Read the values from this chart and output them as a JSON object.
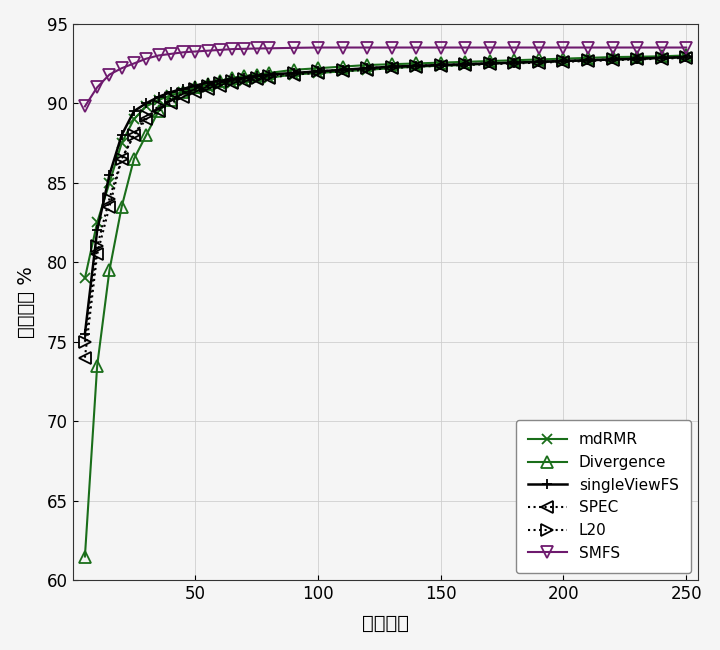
{
  "x_ticks": [
    50,
    100,
    150,
    200,
    250
  ],
  "xlim": [
    0,
    255
  ],
  "ylim": [
    60,
    95
  ],
  "y_ticks": [
    60,
    65,
    70,
    75,
    80,
    85,
    90,
    95
  ],
  "xlabel": "特征数量",
  "ylabel": "总体精度 %",
  "background_color": "#f5f5f5",
  "grid_color": "#cccccc",
  "series": {
    "mdRMR": {
      "x": [
        5,
        10,
        15,
        20,
        25,
        30,
        35,
        40,
        45,
        50,
        55,
        60,
        65,
        70,
        75,
        80,
        90,
        100,
        110,
        120,
        130,
        140,
        150,
        160,
        170,
        180,
        190,
        200,
        210,
        220,
        230,
        240,
        250
      ],
      "y": [
        79.0,
        82.5,
        85.0,
        87.5,
        89.0,
        89.8,
        90.2,
        90.5,
        90.7,
        90.9,
        91.0,
        91.2,
        91.3,
        91.4,
        91.5,
        91.6,
        91.8,
        91.9,
        92.0,
        92.1,
        92.2,
        92.3,
        92.35,
        92.4,
        92.5,
        92.55,
        92.6,
        92.65,
        92.7,
        92.75,
        92.8,
        92.85,
        92.9
      ],
      "color": "#1a6e1a",
      "linestyle": "-",
      "marker": "x",
      "markersize": 7,
      "linewidth": 1.5,
      "markerfacecolor": "none"
    },
    "Divergence": {
      "x": [
        5,
        10,
        15,
        20,
        25,
        30,
        35,
        40,
        45,
        50,
        55,
        60,
        65,
        70,
        75,
        80,
        90,
        100,
        110,
        120,
        130,
        140,
        150,
        160,
        170,
        180,
        190,
        200,
        210,
        220,
        230,
        240,
        250
      ],
      "y": [
        61.5,
        73.5,
        79.5,
        83.5,
        86.5,
        88.0,
        89.5,
        90.2,
        90.7,
        91.0,
        91.2,
        91.4,
        91.6,
        91.7,
        91.8,
        91.9,
        92.1,
        92.2,
        92.3,
        92.4,
        92.45,
        92.5,
        92.55,
        92.6,
        92.65,
        92.7,
        92.75,
        92.8,
        92.85,
        92.9,
        92.92,
        92.95,
        93.0
      ],
      "color": "#1a6e1a",
      "linestyle": "-",
      "marker": "^",
      "markersize": 8,
      "linewidth": 1.5,
      "markerfacecolor": "none"
    },
    "singleViewFS": {
      "x": [
        5,
        10,
        15,
        20,
        25,
        30,
        35,
        40,
        45,
        50,
        55,
        60,
        65,
        70,
        75,
        80,
        90,
        100,
        110,
        120,
        130,
        140,
        150,
        160,
        170,
        180,
        190,
        200,
        210,
        220,
        230,
        240,
        250
      ],
      "y": [
        75.5,
        82.0,
        85.5,
        88.0,
        89.5,
        90.0,
        90.4,
        90.7,
        90.9,
        91.1,
        91.3,
        91.4,
        91.5,
        91.6,
        91.7,
        91.8,
        91.9,
        92.0,
        92.1,
        92.2,
        92.3,
        92.35,
        92.4,
        92.45,
        92.5,
        92.55,
        92.6,
        92.65,
        92.7,
        92.75,
        92.8,
        92.85,
        92.9
      ],
      "color": "#000000",
      "linestyle": "-",
      "marker": "+",
      "markersize": 7,
      "linewidth": 1.8,
      "markerfacecolor": "#000000"
    },
    "SPEC": {
      "x": [
        5,
        10,
        15,
        20,
        25,
        30,
        35,
        40,
        45,
        50,
        55,
        60,
        65,
        70,
        75,
        80,
        90,
        100,
        110,
        120,
        130,
        140,
        150,
        160,
        170,
        180,
        190,
        200,
        210,
        220,
        230,
        240,
        250
      ],
      "y": [
        74.0,
        80.5,
        83.5,
        86.5,
        88.0,
        89.0,
        89.5,
        90.0,
        90.4,
        90.7,
        90.9,
        91.1,
        91.3,
        91.4,
        91.5,
        91.6,
        91.8,
        91.9,
        92.0,
        92.1,
        92.2,
        92.3,
        92.35,
        92.4,
        92.45,
        92.5,
        92.55,
        92.6,
        92.65,
        92.7,
        92.75,
        92.8,
        92.85
      ],
      "color": "#000000",
      "linestyle": ":",
      "marker": "<",
      "markersize": 8,
      "linewidth": 1.5,
      "markerfacecolor": "none"
    },
    "L20": {
      "x": [
        5,
        10,
        15,
        20,
        25,
        30,
        35,
        40,
        45,
        50,
        55,
        60,
        65,
        70,
        75,
        80,
        90,
        100,
        110,
        120,
        130,
        140,
        150,
        160,
        170,
        180,
        190,
        200,
        210,
        220,
        230,
        240,
        250
      ],
      "y": [
        75.0,
        81.0,
        84.0,
        86.5,
        88.0,
        89.2,
        89.8,
        90.3,
        90.6,
        90.9,
        91.1,
        91.3,
        91.4,
        91.5,
        91.6,
        91.7,
        91.9,
        92.0,
        92.1,
        92.2,
        92.3,
        92.35,
        92.4,
        92.45,
        92.5,
        92.55,
        92.6,
        92.65,
        92.7,
        92.75,
        92.8,
        92.85,
        92.9
      ],
      "color": "#000000",
      "linestyle": ":",
      "marker": ">",
      "markersize": 8,
      "linewidth": 1.5,
      "markerfacecolor": "none"
    },
    "SMFS": {
      "x": [
        5,
        10,
        15,
        20,
        25,
        30,
        35,
        40,
        45,
        50,
        55,
        60,
        65,
        70,
        75,
        80,
        90,
        100,
        110,
        120,
        130,
        140,
        150,
        160,
        170,
        180,
        190,
        200,
        210,
        220,
        230,
        240,
        250
      ],
      "y": [
        89.8,
        91.0,
        91.8,
        92.2,
        92.5,
        92.8,
        93.0,
        93.1,
        93.2,
        93.25,
        93.3,
        93.35,
        93.4,
        93.42,
        93.44,
        93.45,
        93.48,
        93.5,
        93.5,
        93.5,
        93.5,
        93.5,
        93.5,
        93.5,
        93.5,
        93.5,
        93.5,
        93.5,
        93.5,
        93.5,
        93.5,
        93.5,
        93.5
      ],
      "color": "#6e1a6e",
      "linestyle": "-",
      "marker": "v",
      "markersize": 9,
      "linewidth": 1.5,
      "markerfacecolor": "none"
    }
  },
  "fontsize_tick": 12,
  "fontsize_label": 14,
  "fontsize_legend": 11
}
